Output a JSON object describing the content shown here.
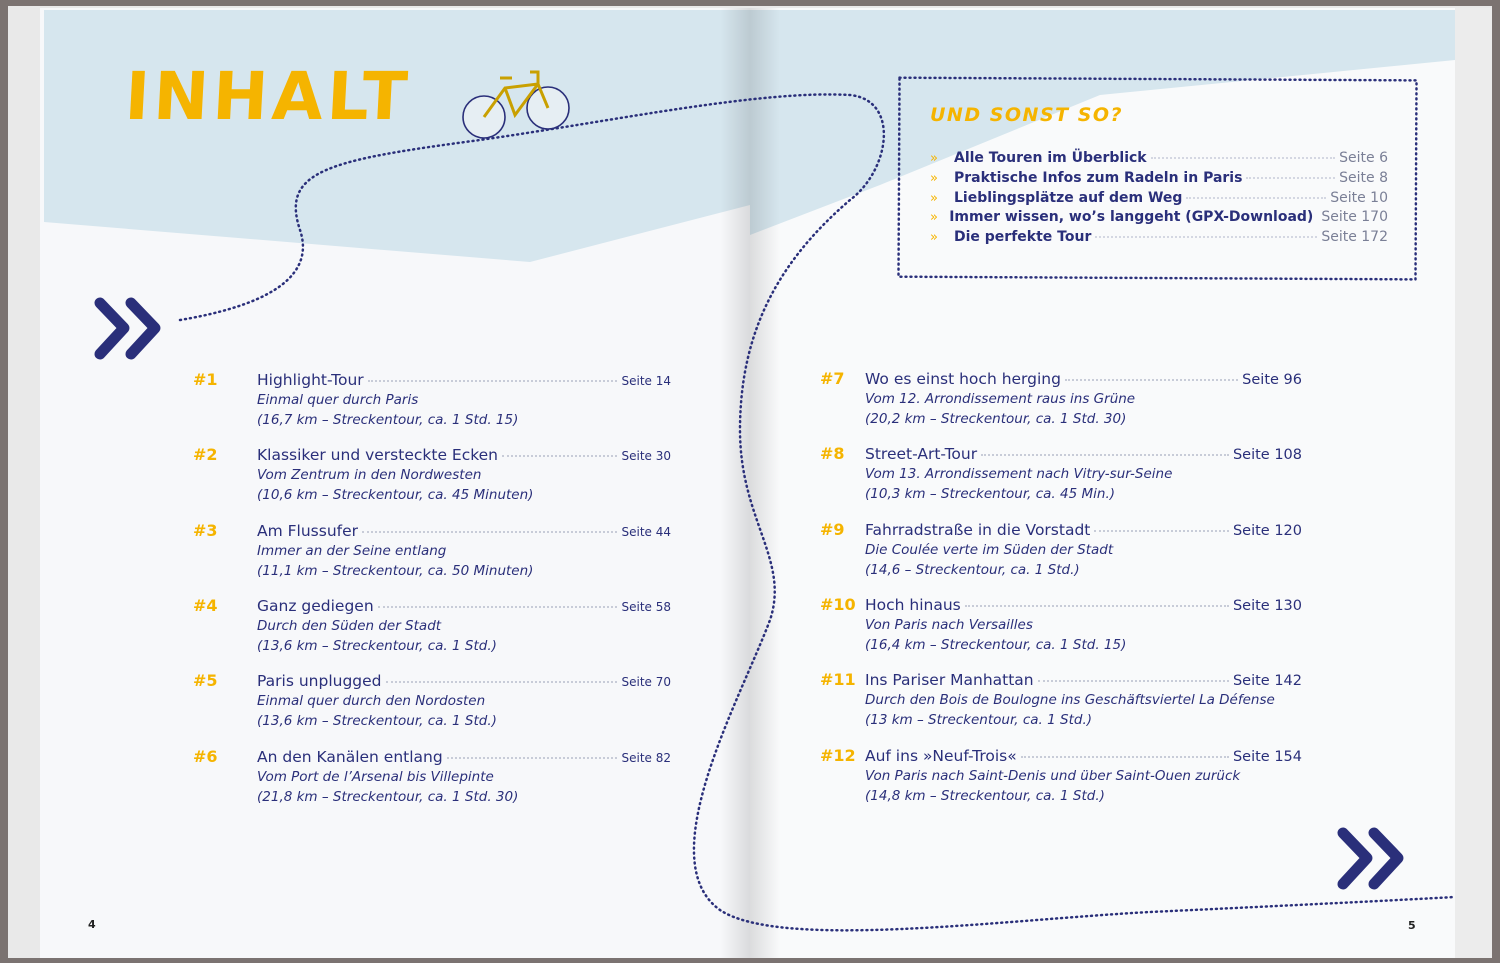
{
  "title": "INHALT",
  "colors": {
    "accent": "#f5b400",
    "text": "#2a2f7a",
    "sky": "#d6e6ee",
    "frame": "#7b7371"
  },
  "icons": [
    "bicycle-icon",
    "double-chevron-icon",
    "dotted-route-line"
  ],
  "extras": {
    "heading": "UND SONST SO?",
    "items": [
      {
        "label": "Alle Touren im Überblick",
        "page": "Seite 6"
      },
      {
        "label": "Praktische Infos zum Radeln in Paris",
        "page": "Seite 8"
      },
      {
        "label": "Lieblingsplätze auf dem Weg",
        "page": "Seite 10"
      },
      {
        "label": "Immer wissen, wo’s langgeht (GPX-Download)",
        "page": "Seite 170"
      },
      {
        "label": "Die perfekte Tour",
        "page": "Seite 172"
      }
    ]
  },
  "tours": [
    {
      "num": "#1",
      "title": "Highlight-Tour",
      "page": "Seite 14",
      "line1": "Einmal quer durch Paris",
      "line2": "(16,7 km – Streckentour, ca. 1 Std. 15)"
    },
    {
      "num": "#2",
      "title": "Klassiker und versteckte Ecken",
      "page": "Seite 30",
      "line1": "Vom Zentrum in den Nordwesten",
      "line2": "(10,6 km – Streckentour, ca. 45 Minuten)"
    },
    {
      "num": "#3",
      "title": "Am Flussufer",
      "page": "Seite 44",
      "line1": "Immer an der Seine entlang",
      "line2": "(11,1 km – Streckentour, ca. 50 Minuten)"
    },
    {
      "num": "#4",
      "title": "Ganz gediegen",
      "page": "Seite 58",
      "line1": "Durch den Süden der Stadt",
      "line2": "(13,6 km – Streckentour, ca. 1 Std.)"
    },
    {
      "num": "#5",
      "title": "Paris unplugged",
      "page": "Seite 70",
      "line1": "Einmal quer durch den Nordosten",
      "line2": "(13,6 km – Streckentour, ca. 1 Std.)"
    },
    {
      "num": "#6",
      "title": "An den Kanälen entlang",
      "page": "Seite 82",
      "line1": "Vom Port de l’Arsenal bis Villepinte",
      "line2": "(21,8 km – Streckentour, ca. 1 Std. 30)"
    },
    {
      "num": "#7",
      "title": "Wo es einst hoch herging",
      "page": "Seite 96",
      "line1": "Vom 12. Arrondissement raus ins Grüne",
      "line2": "(20,2 km – Streckentour, ca. 1 Std. 30)"
    },
    {
      "num": "#8",
      "title": "Street-Art-Tour",
      "page": "Seite 108",
      "line1": "Vom 13. Arrondissement nach Vitry-sur-Seine",
      "line2": "(10,3 km – Streckentour, ca. 45 Min.)"
    },
    {
      "num": "#9",
      "title": "Fahrradstraße in die Vorstadt",
      "page": "Seite 120",
      "line1": "Die Coulée verte im Süden der Stadt",
      "line2": "(14,6 – Streckentour, ca. 1 Std.)"
    },
    {
      "num": "#10",
      "title": "Hoch hinaus",
      "page": "Seite 130",
      "line1": "Von Paris nach Versailles",
      "line2": "(16,4 km – Streckentour, ca. 1 Std. 15)"
    },
    {
      "num": "#11",
      "title": "Ins Pariser Manhattan",
      "page": "Seite 142",
      "line1": "Durch den Bois de Boulogne ins Geschäftsviertel La Défense",
      "line2": "(13 km – Streckentour, ca. 1 Std.)"
    },
    {
      "num": "#12",
      "title": "Auf ins »Neuf-Trois«",
      "page": "Seite 154",
      "line1": "Von Paris nach Saint-Denis und über Saint-Ouen zurück",
      "line2": "(14,8 km – Streckentour, ca. 1 Std.)"
    }
  ],
  "page_numbers": {
    "left": "4",
    "right": "5"
  }
}
